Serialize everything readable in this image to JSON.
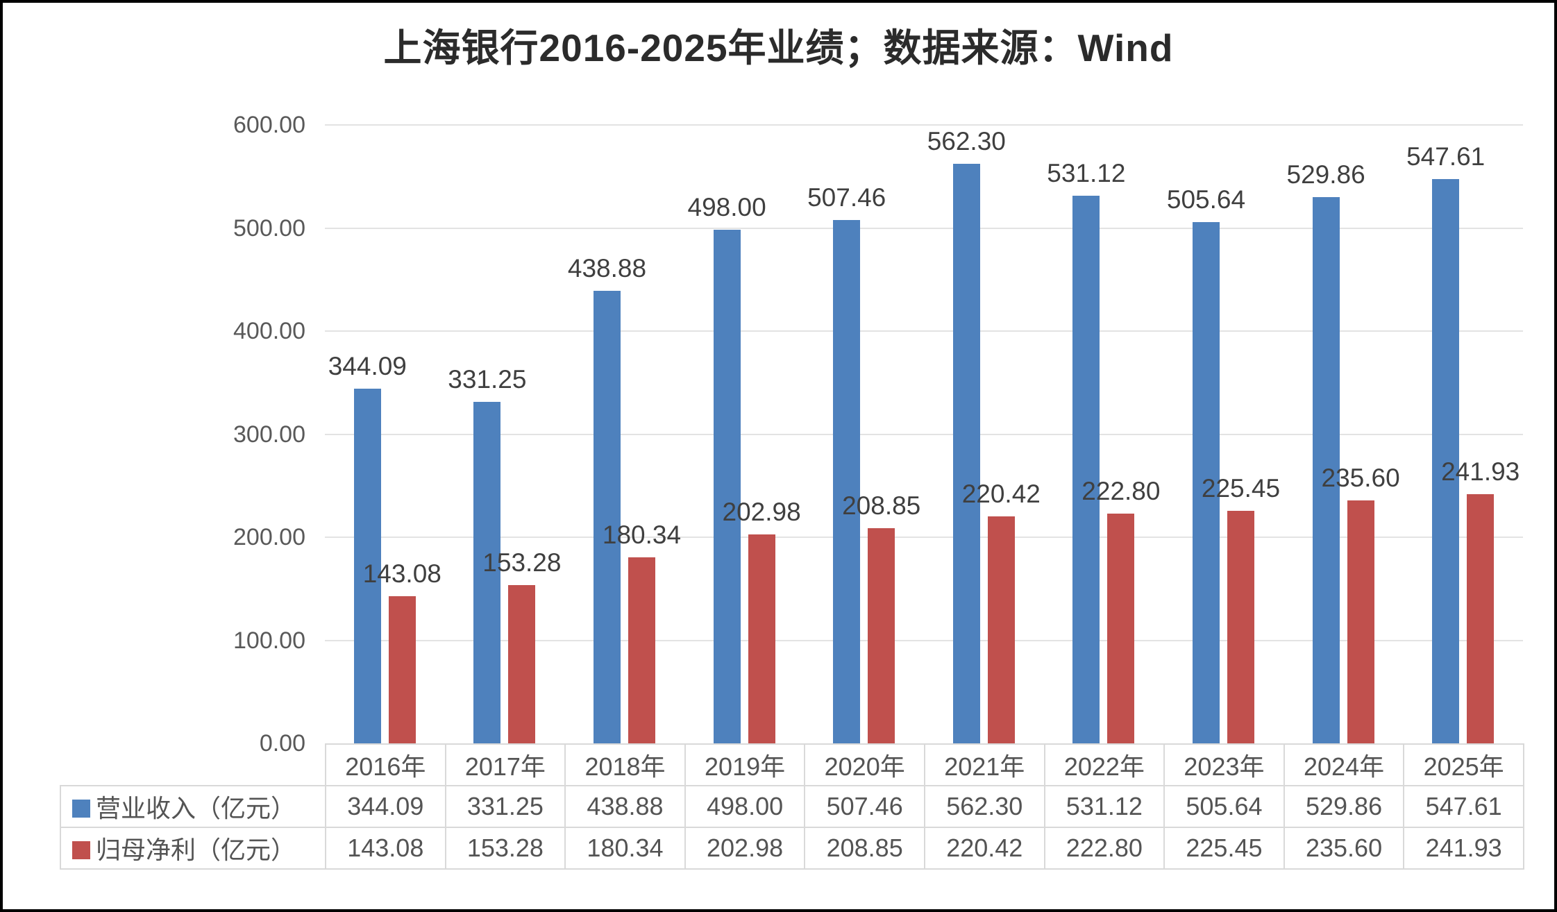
{
  "chart_data": {
    "type": "bar",
    "title": "上海银行2016-2025年业绩；数据来源：Wind",
    "categories": [
      "2016年",
      "2017年",
      "2018年",
      "2019年",
      "2020年",
      "2021年",
      "2022年",
      "2023年",
      "2024年",
      "2025年"
    ],
    "series": [
      {
        "name": "营业收入（亿元）",
        "color": "#4e81bd",
        "values": [
          344.09,
          331.25,
          438.88,
          498.0,
          507.46,
          562.3,
          531.12,
          505.64,
          529.86,
          547.61
        ]
      },
      {
        "name": "归母净利（亿元）",
        "color": "#c0504d",
        "values": [
          143.08,
          153.28,
          180.34,
          202.98,
          208.85,
          220.42,
          222.8,
          225.45,
          235.6,
          241.93
        ]
      }
    ],
    "ylim": [
      0,
      600
    ],
    "ytick_step": 100,
    "ytick_labels": [
      "0.00",
      "100.00",
      "200.00",
      "300.00",
      "400.00",
      "500.00",
      "600.00"
    ],
    "grid": true,
    "value_labels": true,
    "legend_position": "table-left"
  },
  "colors": {
    "grid": "#e3e3e3",
    "axis_text": "#595959",
    "value_label_text": "#3f3f3f",
    "table_border": "#d9d9d9",
    "title_text": "#2b2b2b",
    "series_revenue": "#4e81bd",
    "series_profit": "#c0504d"
  }
}
